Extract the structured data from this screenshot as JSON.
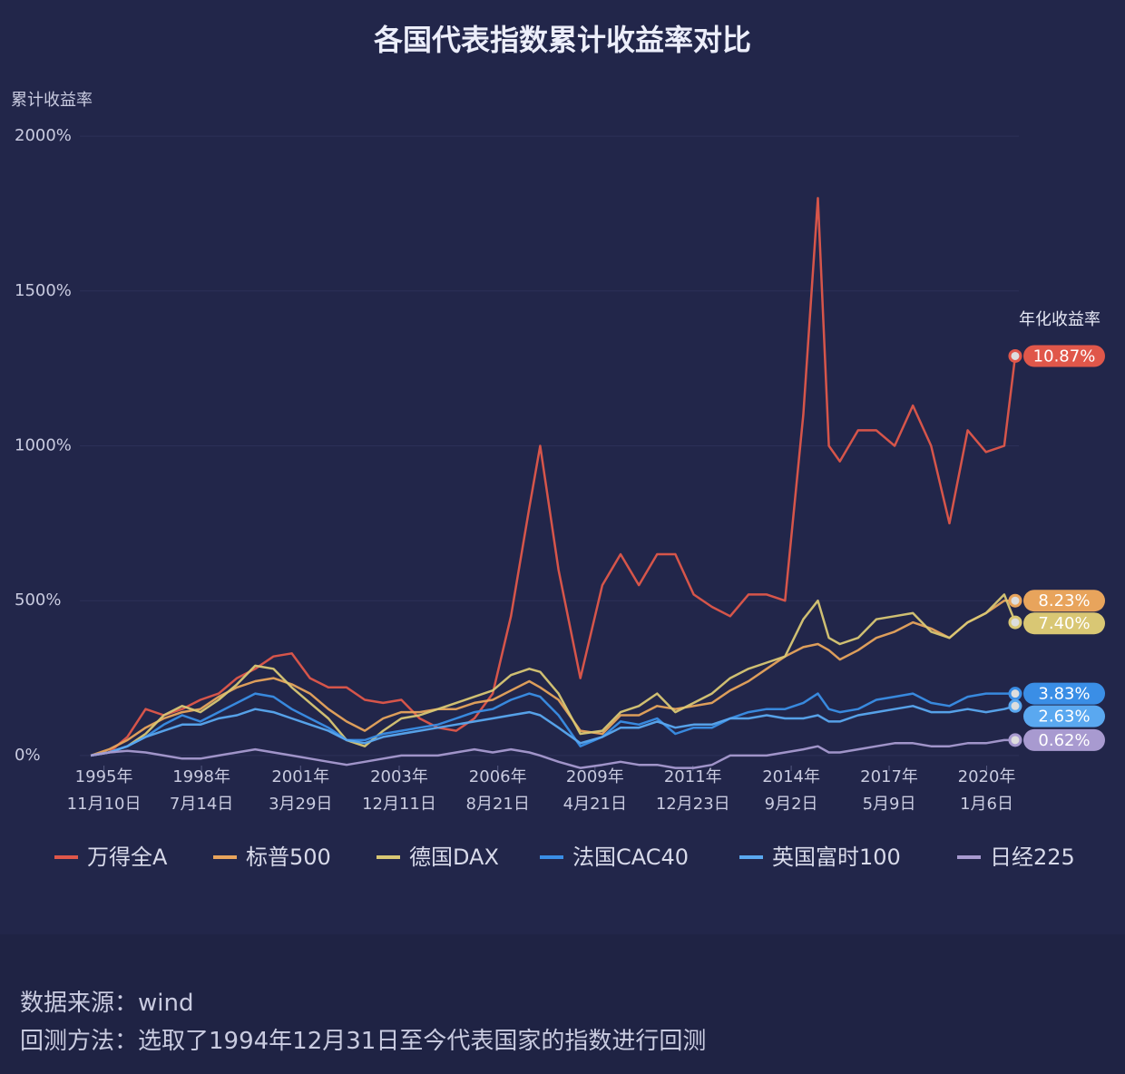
{
  "chart_data": {
    "type": "line",
    "title": "各国代表指数累计收益率对比",
    "y_label": "累计收益率",
    "annotation": "年化收益率",
    "x": [
      1995.5,
      1996,
      1996.5,
      1997,
      1997.5,
      1998,
      1998.5,
      1999,
      1999.5,
      2000,
      2000.5,
      2001,
      2001.5,
      2002,
      2002.5,
      2003,
      2003.5,
      2004,
      2004.5,
      2005,
      2005.5,
      2006,
      2006.5,
      2007,
      2007.5,
      2007.8,
      2008.3,
      2008.9,
      2009.5,
      2010,
      2010.5,
      2011,
      2011.5,
      2012,
      2012.5,
      2013,
      2013.5,
      2014,
      2014.5,
      2015,
      2015.4,
      2015.7,
      2016,
      2016.5,
      2017,
      2017.5,
      2018,
      2018.5,
      2019,
      2019.5,
      2020,
      2020.5,
      2020.8
    ],
    "xlim": [
      1995.2,
      2020.9
    ],
    "xticks": [
      {
        "value": 1995.86,
        "label": "1995年\n11月10日"
      },
      {
        "value": 1998.53,
        "label": "1998年\n7月14日"
      },
      {
        "value": 2001.24,
        "label": "2001年\n3月29日"
      },
      {
        "value": 2003.94,
        "label": "2003年\n12月11日"
      },
      {
        "value": 2006.64,
        "label": "2006年\n8月21日"
      },
      {
        "value": 2009.3,
        "label": "2009年\n4月21日"
      },
      {
        "value": 2011.98,
        "label": "2011年\n12月23日"
      },
      {
        "value": 2014.67,
        "label": "2014年\n9月2日"
      },
      {
        "value": 2017.35,
        "label": "2017年\n5月9日"
      },
      {
        "value": 2020.02,
        "label": "2020年\n1月6日"
      }
    ],
    "ylim": [
      -50,
      2050
    ],
    "yticks": [
      {
        "value": 0,
        "label": "0%"
      },
      {
        "value": 500,
        "label": "500%"
      },
      {
        "value": 1000,
        "label": "1000%"
      },
      {
        "value": 1500,
        "label": "1500%"
      },
      {
        "value": 2000,
        "label": "2000%"
      }
    ],
    "series": [
      {
        "name": "万得全A",
        "color": "#e0574a",
        "end_label": "10.87%",
        "values": [
          0,
          10,
          60,
          150,
          130,
          150,
          180,
          200,
          250,
          280,
          320,
          330,
          250,
          220,
          220,
          180,
          170,
          180,
          120,
          90,
          80,
          120,
          200,
          450,
          800,
          1000,
          600,
          250,
          550,
          650,
          550,
          650,
          650,
          520,
          480,
          450,
          520,
          520,
          500,
          1100,
          1800,
          1000,
          950,
          1050,
          1050,
          1000,
          1130,
          1000,
          750,
          1050,
          980,
          1000,
          1290
        ]
      },
      {
        "name": "标普500",
        "color": "#e8a45c",
        "end_label": "8.23%",
        "values": [
          0,
          20,
          50,
          90,
          120,
          140,
          150,
          190,
          220,
          240,
          250,
          230,
          200,
          150,
          110,
          80,
          120,
          140,
          140,
          150,
          150,
          170,
          180,
          210,
          240,
          220,
          180,
          80,
          70,
          130,
          130,
          160,
          150,
          160,
          170,
          210,
          240,
          280,
          320,
          350,
          360,
          340,
          310,
          340,
          380,
          400,
          430,
          410,
          380,
          430,
          460,
          500,
          500
        ]
      },
      {
        "name": "德国DAX",
        "color": "#d9c774",
        "end_label": "7.40%",
        "values": [
          0,
          10,
          30,
          70,
          130,
          160,
          140,
          180,
          230,
          290,
          280,
          220,
          170,
          120,
          50,
          30,
          80,
          120,
          130,
          150,
          170,
          190,
          210,
          260,
          280,
          270,
          200,
          70,
          80,
          140,
          160,
          200,
          140,
          170,
          200,
          250,
          280,
          300,
          320,
          440,
          500,
          380,
          360,
          380,
          440,
          450,
          460,
          400,
          380,
          430,
          460,
          520,
          430
        ]
      },
      {
        "name": "法国CAC40",
        "color": "#3a8ee6",
        "end_label": "3.83%",
        "values": [
          0,
          10,
          30,
          60,
          100,
          130,
          110,
          140,
          170,
          200,
          190,
          150,
          120,
          90,
          50,
          50,
          70,
          80,
          90,
          100,
          120,
          140,
          150,
          180,
          200,
          190,
          130,
          30,
          60,
          110,
          100,
          120,
          70,
          90,
          90,
          120,
          140,
          150,
          150,
          170,
          200,
          150,
          140,
          150,
          180,
          190,
          200,
          170,
          160,
          190,
          200,
          200,
          200
        ]
      },
      {
        "name": "英国富时100",
        "color": "#5aa8f0",
        "end_label": "2.63%",
        "values": [
          0,
          10,
          30,
          60,
          80,
          100,
          100,
          120,
          130,
          150,
          140,
          120,
          100,
          80,
          50,
          40,
          60,
          70,
          80,
          90,
          100,
          110,
          120,
          130,
          140,
          130,
          90,
          40,
          60,
          90,
          90,
          110,
          90,
          100,
          100,
          120,
          120,
          130,
          120,
          120,
          130,
          110,
          110,
          130,
          140,
          150,
          160,
          140,
          140,
          150,
          140,
          150,
          160
        ]
      },
      {
        "name": "日经225",
        "color": "#a89ad0",
        "end_label": "0.62%",
        "values": [
          0,
          10,
          15,
          10,
          0,
          -10,
          -10,
          0,
          10,
          20,
          10,
          0,
          -10,
          -20,
          -30,
          -20,
          -10,
          0,
          0,
          0,
          10,
          20,
          10,
          20,
          10,
          0,
          -20,
          -40,
          -30,
          -20,
          -30,
          -30,
          -40,
          -40,
          -30,
          0,
          0,
          0,
          10,
          20,
          30,
          10,
          10,
          20,
          30,
          40,
          40,
          30,
          30,
          40,
          40,
          50,
          50
        ]
      }
    ]
  },
  "footer": {
    "source": "数据来源：wind",
    "method": "回测方法：选取了1994年12月31日至今代表国家的指数进行回测"
  }
}
